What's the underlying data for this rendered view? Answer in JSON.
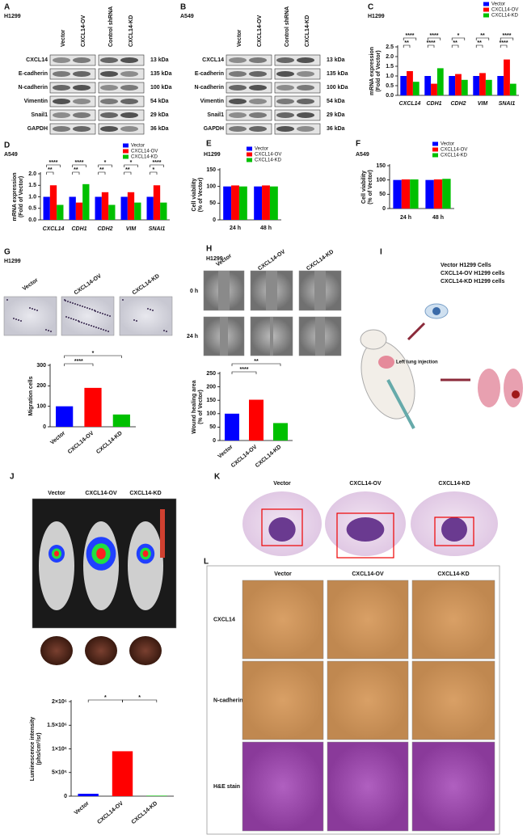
{
  "panels": {
    "A": {
      "letter": "A",
      "cell_line": "H1299",
      "lanes": [
        "Vector",
        "CXCL14-OV",
        "Control shRNA",
        "CXCL14-KD"
      ],
      "proteins": [
        "CXCL14",
        "E-cadherin",
        "N-cadherin",
        "Vimentin",
        "Snail1",
        "GAPDH"
      ],
      "sizes": [
        "13 kDa",
        "135 kDa",
        "100 kDa",
        "54 kDa",
        "29 kDa",
        "36 kDa"
      ]
    },
    "B": {
      "letter": "B",
      "cell_line": "A549",
      "lanes": [
        "Vector",
        "CXCL14-OV",
        "Control shRNA",
        "CXCL14-KD"
      ],
      "proteins": [
        "CXCL14",
        "E-cadherin",
        "N-cadherin",
        "Vimentin",
        "Snail1",
        "GAPDH"
      ],
      "sizes": [
        "13 kDa",
        "135 kDa",
        "100 kDa",
        "54 kDa",
        "29 kDa",
        "36 kDa"
      ]
    },
    "G": {
      "letter": "G",
      "cell_line": "H1299",
      "columns": [
        "Vector",
        "CXCL14-OV",
        "CXCL14-KD"
      ]
    },
    "H": {
      "letter": "H",
      "cell_line": "H1299",
      "columns": [
        "Vector",
        "CXCL14-OV",
        "CXCL14-KD"
      ],
      "rows": [
        "0 h",
        "24 h"
      ]
    },
    "I": {
      "letter": "I",
      "legend": [
        "Vector H1299 Cells",
        "CXCL14-OV H1299 cells",
        "CXCL14-KD H1299 cells"
      ],
      "injection": "Left lung injection"
    },
    "J": {
      "letter": "J",
      "columns": [
        "Vector",
        "CXCL14-OV",
        "CXCL14-KD"
      ]
    },
    "K": {
      "letter": "K",
      "columns": [
        "Vector",
        "CXCL14-OV",
        "CXCL14-KD"
      ]
    },
    "L": {
      "letter": "L",
      "columns": [
        "Vector",
        "CXCL14-OV",
        "CXCL14-KD"
      ],
      "rows": [
        "CXCL14",
        "N-cadherin",
        "H&E stain"
      ]
    }
  },
  "chart_data": [
    {
      "type": "bar",
      "panel_label": "C",
      "title": "H1299",
      "y_label": [
        "mRNA expression",
        "(Fold of Vector)"
      ],
      "categories": [
        "CXCL14",
        "CDH1",
        "CDH2",
        "VIM",
        "SNAI1"
      ],
      "series": [
        {
          "name": "Vector",
          "color": "#0000ff",
          "values": [
            1.0,
            1.0,
            1.0,
            1.0,
            1.0
          ]
        },
        {
          "name": "CXCL14-OV",
          "color": "#ff0000",
          "values": [
            1.25,
            0.6,
            1.1,
            1.15,
            1.85
          ]
        },
        {
          "name": "CXCL14-KD",
          "color": "#00c000",
          "values": [
            0.7,
            1.4,
            0.8,
            0.8,
            0.6
          ]
        }
      ],
      "ylim": [
        0,
        2.5
      ],
      "yticks": [
        {
          "value": 0,
          "label": "0.0"
        },
        0.5,
        {
          "value": 1,
          "label": "1.0"
        },
        1.5,
        {
          "value": 2,
          "label": "2.0"
        },
        2.5
      ],
      "annotations": [
        "**",
        "****",
        "****",
        "****",
        "**",
        "*",
        "**",
        "**",
        "****",
        "****"
      ]
    },
    {
      "type": "bar",
      "panel_label": "D",
      "title": "A549",
      "y_label": [
        "mRNA expression",
        "(Fold of Vector)"
      ],
      "categories": [
        "CXCL14",
        "CDH1",
        "CDH2",
        "VIM",
        "SNAI1"
      ],
      "series": [
        {
          "name": "Vector",
          "color": "#0000ff",
          "values": [
            1.0,
            1.0,
            1.0,
            1.0,
            1.0
          ]
        },
        {
          "name": "CXCL14-OV",
          "color": "#ff0000",
          "values": [
            1.5,
            0.75,
            1.2,
            1.2,
            1.5
          ]
        },
        {
          "name": "CXCL14-KD",
          "color": "#00c000",
          "values": [
            0.65,
            1.55,
            0.65,
            0.75,
            0.75
          ]
        }
      ],
      "ylim": [
        0,
        2
      ],
      "yticks": [
        {
          "value": 0,
          "label": "0.0"
        },
        0.5,
        {
          "value": 1,
          "label": "1.0"
        },
        1.5,
        {
          "value": 2,
          "label": "2.0"
        }
      ],
      "annotations": [
        "**",
        "****",
        "**",
        "****",
        "**",
        "*",
        "**",
        "*",
        "*",
        "****"
      ]
    },
    {
      "type": "bar",
      "panel_label": "E",
      "title": "H1299",
      "y_label": [
        "Cell viability",
        "(% of Vector)"
      ],
      "categories": [
        "24 h",
        "48 h"
      ],
      "series": [
        {
          "name": "Vector",
          "color": "#0000ff",
          "values": [
            100,
            100
          ]
        },
        {
          "name": "CXCL14-OV",
          "color": "#ff0000",
          "values": [
            103,
            103
          ]
        },
        {
          "name": "CXCL14-KD",
          "color": "#00c000",
          "values": [
            100,
            100
          ]
        }
      ],
      "ylim": [
        0,
        150
      ],
      "yticks": [
        0,
        50,
        100,
        150
      ]
    },
    {
      "type": "bar",
      "panel_label": "F",
      "title": "A549",
      "y_label": [
        "Cell viability",
        "(% of Vector)"
      ],
      "categories": [
        "24 h",
        "48 h"
      ],
      "series": [
        {
          "name": "Vector",
          "color": "#0000ff",
          "values": [
            100,
            100
          ]
        },
        {
          "name": "CXCL14-OV",
          "color": "#ff0000",
          "values": [
            102,
            102
          ]
        },
        {
          "name": "CXCL14-KD",
          "color": "#00c000",
          "values": [
            102,
            104
          ]
        }
      ],
      "ylim": [
        0,
        150
      ],
      "yticks": [
        0,
        50,
        100,
        150
      ]
    },
    {
      "type": "bar",
      "y_label": [
        "Migration cells"
      ],
      "categories": [
        "Vector",
        "CXCL14-OV",
        "CXCL14-KD"
      ],
      "values": [
        100,
        190,
        60
      ],
      "colors": [
        "#0000ff",
        "#ff0000",
        "#00c000"
      ],
      "ylim": [
        0,
        300
      ],
      "yticks": [
        0,
        100,
        200,
        300
      ],
      "annotations": [
        "*",
        "****"
      ]
    },
    {
      "type": "bar",
      "y_label": [
        "Wound healing area",
        "(% of Vector)"
      ],
      "categories": [
        "Vector",
        "CXCL14-OV",
        "CXCL14-KD"
      ],
      "values": [
        100,
        152,
        65
      ],
      "colors": [
        "#0000ff",
        "#ff0000",
        "#00c000"
      ],
      "ylim": [
        0,
        250
      ],
      "yticks": [
        0,
        50,
        100,
        150,
        200,
        250
      ],
      "annotations": [
        "**",
        "****"
      ]
    },
    {
      "type": "bar",
      "y_label": [
        "Luminescence intensity",
        "(phs/cm²/sr)"
      ],
      "categories": [
        "Vector",
        "CXCL14-OV",
        "CXCL14-KD"
      ],
      "values": [
        50000,
        950000,
        10000
      ],
      "colors": [
        "#0000ff",
        "#ff0000",
        "#00c000"
      ],
      "ylim": [
        0,
        2000000
      ],
      "yticks": [
        0,
        {
          "value": 500000,
          "label": "5×10⁵"
        },
        {
          "value": 1000000,
          "label": "1×10⁶"
        },
        {
          "value": 1500000,
          "label": "1.5×10⁶"
        },
        {
          "value": 2000000,
          "label": "2×10⁶"
        }
      ],
      "annotations": [
        "*",
        "*"
      ]
    }
  ]
}
